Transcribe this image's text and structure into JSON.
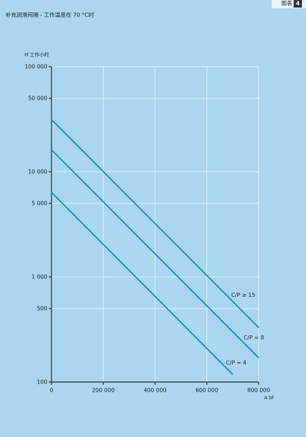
{
  "chart_data": {
    "type": "line",
    "header": {
      "label": "图表",
      "number": "4"
    },
    "title": "补充润滑间隔 - 工作温度在 70 °C时",
    "y_label": "tf 工作小时",
    "x_label": "A bf",
    "log_y": true,
    "grid": true,
    "xlim": [
      0,
      800000
    ],
    "xticks": [
      0,
      {
        "value": 200000,
        "label": "200 000"
      },
      {
        "value": 400000,
        "label": "400 000"
      },
      {
        "value": 600000,
        "label": "600 000"
      },
      {
        "value": 800000,
        "label": "800 000"
      }
    ],
    "ylim": [
      100,
      100000
    ],
    "yticks": [
      100,
      500,
      {
        "value": 1000,
        "label": "1 000"
      },
      {
        "value": 5000,
        "label": "5 000"
      },
      {
        "value": 10000,
        "label": "10 000"
      },
      {
        "value": 50000,
        "label": "50 000"
      },
      {
        "value": 100000,
        "label": "100 000"
      }
    ],
    "series": [
      {
        "name": "C/P ≥ 15",
        "color": "#1a8fd0",
        "x": [
          0,
          800000
        ],
        "values": [
          31400,
          330
        ]
      },
      {
        "name": "C/P = 8",
        "color": "#1a8fd0",
        "x": [
          0,
          800000
        ],
        "values": [
          16200,
          170
        ]
      },
      {
        "name": "C/P = 4",
        "color": "#1a8fd0",
        "x": [
          0,
          700000
        ],
        "values": [
          6370,
          118
        ]
      }
    ]
  }
}
